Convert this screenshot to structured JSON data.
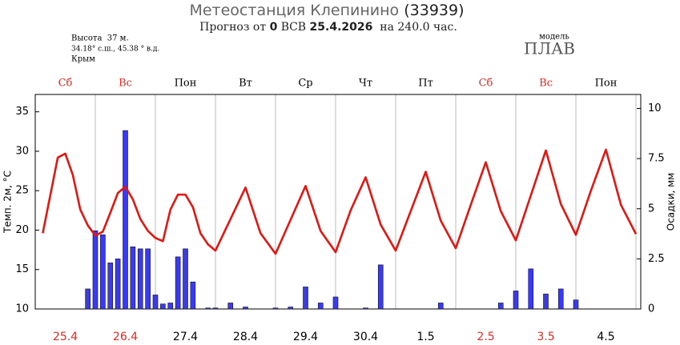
{
  "chart_data": {
    "type": "meteogram",
    "title": "Метеостанция Клепинино",
    "station_id": "(33939)",
    "subtitle": [
      "Прогноз от",
      "0",
      "ВСВ",
      "25.4.2026",
      "на 240.0 час."
    ],
    "info": [
      "Высота  37 м.",
      "34.18° с.ш., 45.38 ° в.д.",
      "Крым"
    ],
    "model_label": "модель",
    "model": "ПЛАВ",
    "y_label": "Темп. 2м, °С",
    "y2_label": "Осадки, мм",
    "days": [
      {
        "weekday": "Сб",
        "date": "25.4",
        "weekend": true
      },
      {
        "weekday": "Вс",
        "date": "26.4",
        "weekend": true
      },
      {
        "weekday": "Пон",
        "date": "27.4",
        "weekend": false
      },
      {
        "weekday": "Вт",
        "date": "28.4",
        "weekend": false
      },
      {
        "weekday": "Ср",
        "date": "29.4",
        "weekend": false
      },
      {
        "weekday": "Чт",
        "date": "30.4",
        "weekend": false
      },
      {
        "weekday": "Пт",
        "date": "1.5",
        "weekend": false
      },
      {
        "weekday": "Сб",
        "date": "2.5",
        "weekend": true
      },
      {
        "weekday": "Вс",
        "date": "3.5",
        "weekend": true
      },
      {
        "weekday": "Пон",
        "date": "4.5",
        "weekend": false
      }
    ],
    "weekend_color": "#e8281e",
    "weekday_color": "#000000",
    "xlim": [
      0,
      240
    ],
    "xticks": [
      24,
      48,
      72,
      96,
      120,
      144,
      168,
      192,
      216,
      240
    ],
    "ylim": [
      10,
      37.2
    ],
    "yticks": [
      10,
      15,
      20,
      25,
      30,
      35
    ],
    "y2lim": [
      0,
      10.7
    ],
    "y2ticks": [
      0,
      2.5,
      5,
      7.5,
      10
    ],
    "grid": true,
    "series": [
      {
        "kind": "line",
        "color": "#e8140f",
        "x": [
          3,
          6,
          9,
          12,
          15,
          18,
          21,
          24,
          27,
          30,
          33,
          36,
          39,
          42,
          45,
          48,
          51,
          54,
          57,
          60,
          63,
          66,
          69,
          72,
          78,
          84,
          90,
          96,
          102,
          108,
          114,
          120,
          126,
          132,
          138,
          144,
          150,
          156,
          162,
          168,
          174,
          180,
          186,
          192,
          198,
          204,
          210,
          216,
          222,
          228,
          234,
          240
        ],
        "values": [
          19.6,
          24.4,
          29.2,
          29.7,
          27.0,
          22.6,
          20.6,
          19.3,
          19.8,
          22.2,
          24.7,
          25.5,
          23.9,
          21.4,
          19.9,
          19.0,
          18.6,
          22.6,
          24.5,
          24.5,
          22.9,
          19.6,
          18.2,
          17.4,
          21.4,
          25.4,
          19.6,
          17.0,
          21.3,
          25.6,
          19.9,
          17.2,
          22.5,
          26.7,
          20.7,
          17.4,
          22.4,
          27.4,
          21.2,
          17.7,
          23.2,
          28.6,
          22.4,
          18.7,
          24.4,
          30.1,
          23.3,
          19.4,
          25.0,
          30.2,
          23.2,
          19.5
        ]
      },
      {
        "kind": "bar",
        "axis": "y2",
        "color": "#3a3af0",
        "x": [
          21,
          24,
          27,
          30,
          33,
          36,
          39,
          42,
          45,
          48,
          51,
          54,
          57,
          60,
          63,
          69,
          72,
          78,
          84,
          96,
          102,
          108,
          114,
          120,
          132,
          138,
          162,
          186,
          192,
          198,
          204,
          210,
          216
        ],
        "values": [
          1.0,
          3.9,
          3.7,
          2.3,
          2.5,
          8.9,
          3.1,
          3.0,
          3.0,
          0.7,
          0.25,
          0.3,
          2.6,
          3.0,
          1.35,
          0.05,
          0.05,
          0.3,
          0.1,
          0.05,
          0.1,
          1.1,
          0.3,
          0.6,
          0.05,
          2.2,
          0.3,
          0.3,
          0.9,
          2.0,
          0.75,
          1.0,
          0.45
        ]
      }
    ]
  }
}
